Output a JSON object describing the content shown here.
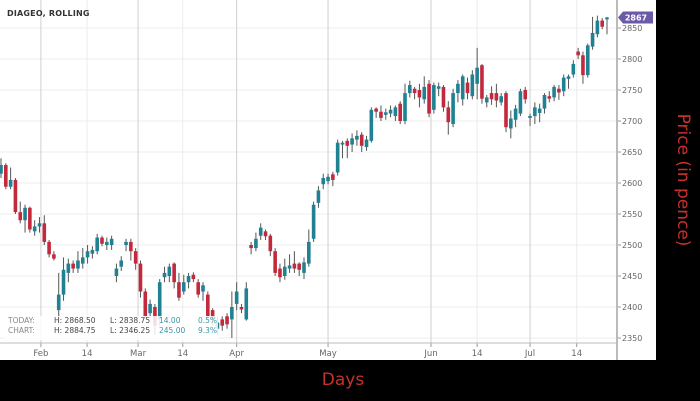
{
  "chart_data": {
    "type": "candlestick",
    "title": "DIAGEO, ROLLING",
    "xlabel": "Days",
    "ylabel": "Price (in pence)",
    "ylim": [
      2330,
      2885
    ],
    "y_ticks": [
      2350,
      2400,
      2450,
      2500,
      2550,
      2600,
      2650,
      2700,
      2750,
      2800,
      2850
    ],
    "x_ticks": [
      {
        "label": "Feb",
        "index": 8.3,
        "major": true
      },
      {
        "label": "14",
        "index": 17.9,
        "major": false
      },
      {
        "label": "Mar",
        "index": 28.5,
        "major": true
      },
      {
        "label": "14",
        "index": 37.8,
        "major": false
      },
      {
        "label": "Apr",
        "index": 49,
        "major": true
      },
      {
        "label": "May",
        "index": 68,
        "major": true
      },
      {
        "label": "Jun",
        "index": 89.4,
        "major": true
      },
      {
        "label": "14",
        "index": 99,
        "major": false
      },
      {
        "label": "Jul",
        "index": 110,
        "major": true
      },
      {
        "label": "14",
        "index": 119.7,
        "major": false
      }
    ],
    "grid": true,
    "colors": {
      "up": "#1f8192",
      "down": "#c4283c",
      "wick": "#555555",
      "badge": "#6b5aa8"
    },
    "last_price_badge": "2867",
    "ohlc": [
      [
        2615,
        2640,
        2608,
        2629
      ],
      [
        2629,
        2632,
        2590,
        2594
      ],
      [
        2594,
        2625,
        2590,
        2605
      ],
      [
        2605,
        2608,
        2550,
        2553
      ],
      [
        2553,
        2570,
        2535,
        2540
      ],
      [
        2540,
        2565,
        2520,
        2560
      ],
      [
        2560,
        2562,
        2520,
        2525
      ],
      [
        2522,
        2540,
        2515,
        2530
      ],
      [
        2530,
        2545,
        2520,
        2535
      ],
      [
        2535,
        2548,
        2500,
        2505
      ],
      [
        2505,
        2508,
        2480,
        2485
      ],
      [
        2485,
        2490,
        2475,
        2478
      ],
      [
        2395,
        2455,
        2370,
        2420
      ],
      [
        2420,
        2480,
        2410,
        2460
      ],
      [
        2455,
        2478,
        2440,
        2470
      ],
      [
        2470,
        2475,
        2455,
        2462
      ],
      [
        2462,
        2490,
        2455,
        2475
      ],
      [
        2470,
        2495,
        2462,
        2480
      ],
      [
        2480,
        2500,
        2470,
        2490
      ],
      [
        2486,
        2498,
        2478,
        2492
      ],
      [
        2490,
        2518,
        2485,
        2512
      ],
      [
        2512,
        2515,
        2498,
        2502
      ],
      [
        2500,
        2512,
        2492,
        2505
      ],
      [
        2500,
        2515,
        2492,
        2510
      ],
      [
        2450,
        2470,
        2440,
        2462
      ],
      [
        2465,
        2482,
        2458,
        2475
      ],
      [
        2500,
        2510,
        2490,
        2505
      ],
      [
        2505,
        2510,
        2475,
        2490
      ],
      [
        2490,
        2495,
        2460,
        2470
      ],
      [
        2470,
        2475,
        2415,
        2425
      ],
      [
        2425,
        2430,
        2380,
        2385
      ],
      [
        2390,
        2412,
        2382,
        2405
      ],
      [
        2400,
        2405,
        2355,
        2370
      ],
      [
        2380,
        2445,
        2370,
        2440
      ],
      [
        2448,
        2465,
        2440,
        2455
      ],
      [
        2450,
        2470,
        2440,
        2465
      ],
      [
        2470,
        2472,
        2430,
        2440
      ],
      [
        2440,
        2455,
        2410,
        2415
      ],
      [
        2425,
        2452,
        2420,
        2440
      ],
      [
        2440,
        2455,
        2430,
        2450
      ],
      [
        2452,
        2456,
        2440,
        2445
      ],
      [
        2440,
        2445,
        2415,
        2420
      ],
      [
        2425,
        2440,
        2410,
        2435
      ],
      [
        2420,
        2425,
        2380,
        2385
      ],
      [
        2395,
        2398,
        2370,
        2380
      ],
      [
        2365,
        2385,
        2355,
        2375
      ],
      [
        2380,
        2385,
        2362,
        2370
      ],
      [
        2385,
        2390,
        2365,
        2372
      ],
      [
        2380,
        2425,
        2350,
        2400
      ],
      [
        2405,
        2440,
        2395,
        2425
      ],
      [
        2400,
        2405,
        2390,
        2396
      ],
      [
        2380,
        2440,
        2378,
        2430
      ],
      [
        2500,
        2505,
        2485,
        2495
      ],
      [
        2495,
        2520,
        2490,
        2510
      ],
      [
        2515,
        2535,
        2508,
        2528
      ],
      [
        2522,
        2525,
        2508,
        2514
      ],
      [
        2515,
        2518,
        2482,
        2490
      ],
      [
        2490,
        2495,
        2450,
        2455
      ],
      [
        2462,
        2470,
        2440,
        2448
      ],
      [
        2450,
        2478,
        2444,
        2465
      ],
      [
        2462,
        2485,
        2455,
        2467
      ],
      [
        2470,
        2490,
        2455,
        2462
      ],
      [
        2470,
        2472,
        2450,
        2460
      ],
      [
        2455,
        2480,
        2445,
        2472
      ],
      [
        2470,
        2525,
        2465,
        2505
      ],
      [
        2510,
        2570,
        2505,
        2565
      ],
      [
        2568,
        2595,
        2560,
        2588
      ],
      [
        2598,
        2615,
        2590,
        2608
      ],
      [
        2603,
        2615,
        2598,
        2610
      ],
      [
        2614,
        2618,
        2595,
        2605
      ],
      [
        2617,
        2670,
        2612,
        2665
      ],
      [
        2662,
        2668,
        2640,
        2665
      ],
      [
        2668,
        2672,
        2640,
        2660
      ],
      [
        2662,
        2680,
        2650,
        2672
      ],
      [
        2670,
        2685,
        2660,
        2676
      ],
      [
        2678,
        2682,
        2650,
        2660
      ],
      [
        2658,
        2676,
        2652,
        2670
      ],
      [
        2668,
        2722,
        2665,
        2718
      ],
      [
        2720,
        2722,
        2705,
        2715
      ],
      [
        2715,
        2725,
        2700,
        2705
      ],
      [
        2710,
        2720,
        2702,
        2714
      ],
      [
        2712,
        2725,
        2706,
        2718
      ],
      [
        2708,
        2725,
        2700,
        2722
      ],
      [
        2728,
        2732,
        2695,
        2700
      ],
      [
        2700,
        2760,
        2695,
        2745
      ],
      [
        2745,
        2765,
        2738,
        2758
      ],
      [
        2752,
        2755,
        2735,
        2745
      ],
      [
        2750,
        2760,
        2722,
        2738
      ],
      [
        2735,
        2772,
        2728,
        2755
      ],
      [
        2760,
        2766,
        2706,
        2712
      ],
      [
        2718,
        2762,
        2712,
        2758
      ],
      [
        2752,
        2762,
        2740,
        2756
      ],
      [
        2755,
        2758,
        2715,
        2722
      ],
      [
        2722,
        2732,
        2678,
        2698
      ],
      [
        2695,
        2752,
        2690,
        2745
      ],
      [
        2745,
        2766,
        2730,
        2760
      ],
      [
        2735,
        2775,
        2725,
        2772
      ],
      [
        2762,
        2770,
        2735,
        2745
      ],
      [
        2740,
        2782,
        2735,
        2775
      ],
      [
        2760,
        2818,
        2735,
        2786
      ],
      [
        2790,
        2792,
        2728,
        2736
      ],
      [
        2730,
        2742,
        2722,
        2738
      ],
      [
        2745,
        2756,
        2726,
        2735
      ],
      [
        2745,
        2760,
        2722,
        2733
      ],
      [
        2730,
        2745,
        2725,
        2740
      ],
      [
        2745,
        2748,
        2682,
        2690
      ],
      [
        2688,
        2717,
        2672,
        2704
      ],
      [
        2702,
        2726,
        2690,
        2720
      ],
      [
        2712,
        2752,
        2708,
        2748
      ],
      [
        2750,
        2755,
        2728,
        2735
      ],
      [
        2705,
        2712,
        2692,
        2708
      ],
      [
        2708,
        2730,
        2695,
        2722
      ],
      [
        2713,
        2728,
        2698,
        2720
      ],
      [
        2720,
        2745,
        2712,
        2742
      ],
      [
        2740,
        2748,
        2730,
        2736
      ],
      [
        2738,
        2758,
        2732,
        2755
      ],
      [
        2752,
        2758,
        2734,
        2746
      ],
      [
        2748,
        2775,
        2740,
        2770
      ],
      [
        2768,
        2775,
        2752,
        2772
      ],
      [
        2775,
        2798,
        2770,
        2792
      ],
      [
        2812,
        2818,
        2800,
        2806
      ],
      [
        2806,
        2812,
        2760,
        2774
      ],
      [
        2774,
        2825,
        2770,
        2822
      ],
      [
        2820,
        2868,
        2815,
        2842
      ],
      [
        2840,
        2870,
        2835,
        2862
      ],
      [
        2862,
        2866,
        2848,
        2852
      ],
      [
        2864,
        2868,
        2840,
        2867
      ]
    ]
  },
  "summary": {
    "today": {
      "label": "TODAY:",
      "high": "H: 2868.50",
      "low": "L: 2838.75",
      "change": "14.00",
      "pct": "0.5%"
    },
    "chart": {
      "label": "CHART:",
      "high": "H: 2884.75",
      "low": "L: 2346.25",
      "change": "245.00",
      "pct": "9.3%"
    }
  }
}
